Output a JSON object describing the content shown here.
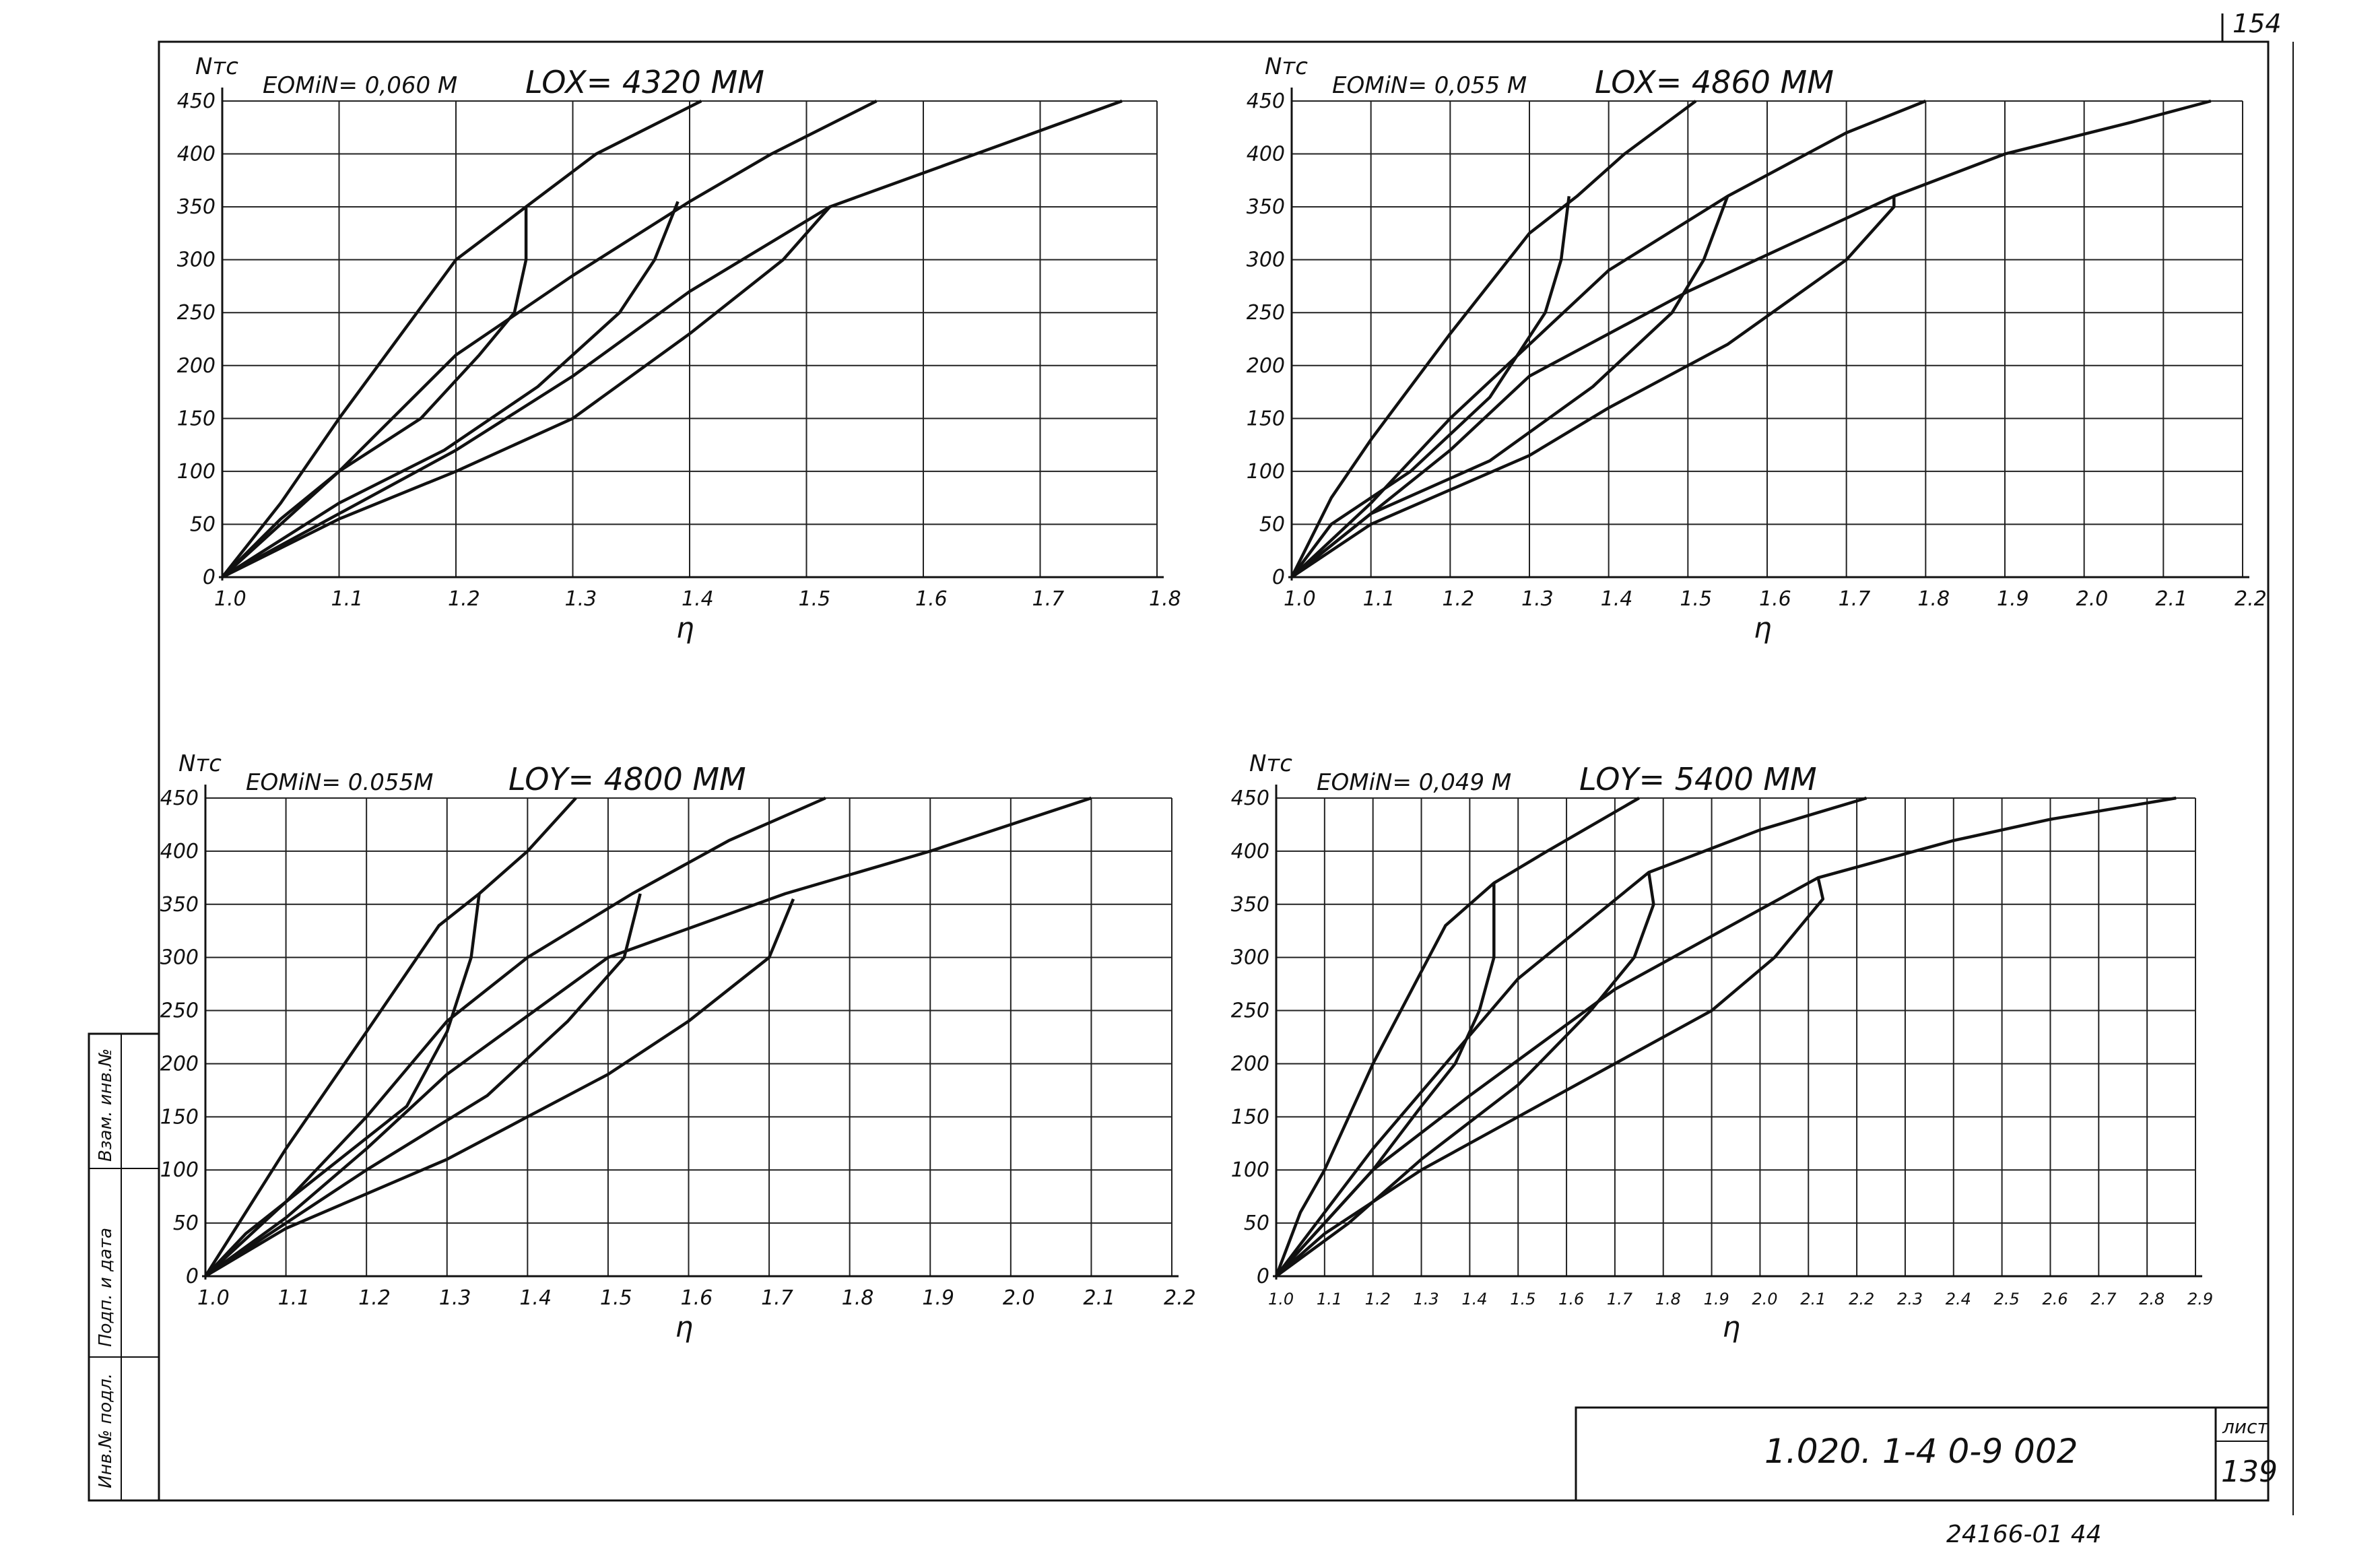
{
  "sheet": {
    "page_number_top": "154",
    "doc_code": "1.020. 1-4   0-9  002",
    "sheet_label": "лист",
    "sheet_number": "139",
    "bottom_note": "24166-01   44",
    "side_stamp": [
      "Инв.№ подл.",
      "Подп. и дата",
      "Взам. инв.№"
    ]
  },
  "chart_data": [
    {
      "type": "line",
      "header_left": "EOMiN= 0,060 M",
      "header_right": "LOX= 4320 MM",
      "ylabel": "Nтс",
      "xlabel": "η",
      "ylim": [
        0,
        450
      ],
      "xlim": [
        1.0,
        1.8
      ],
      "xticks": [
        "1.0",
        "1.1",
        "1.2",
        "1.3",
        "1.4",
        "1.5",
        "1.6",
        "1.7",
        "1.8"
      ],
      "yticks": [
        "0",
        "50",
        "100",
        "150",
        "200",
        "250",
        "300",
        "350",
        "400",
        "450"
      ],
      "grid": true,
      "series": [
        {
          "x": [
            1.0,
            1.05,
            1.1,
            1.2,
            1.26,
            1.32,
            1.41
          ],
          "y": [
            0,
            70,
            150,
            300,
            350,
            400,
            450
          ]
        },
        {
          "x": [
            1.0,
            1.05,
            1.1,
            1.2,
            1.3,
            1.4,
            1.47,
            1.56
          ],
          "y": [
            0,
            55,
            100,
            210,
            285,
            355,
            400,
            450
          ]
        },
        {
          "x": [
            1.0,
            1.1,
            1.2,
            1.3,
            1.4,
            1.52,
            1.62,
            1.77
          ],
          "y": [
            0,
            60,
            120,
            190,
            270,
            350,
            390,
            450
          ]
        },
        {
          "x": [
            1.26,
            1.26,
            1.25,
            1.22,
            1.17,
            1.1,
            1.0
          ],
          "y": [
            350,
            300,
            250,
            210,
            150,
            100,
            0
          ]
        },
        {
          "x": [
            1.39,
            1.37,
            1.34,
            1.27,
            1.19,
            1.1,
            1.0
          ],
          "y": [
            355,
            300,
            250,
            180,
            120,
            70,
            0
          ]
        },
        {
          "x": [
            1.52,
            1.48,
            1.4,
            1.3,
            1.2,
            1.1,
            1.0
          ],
          "y": [
            350,
            300,
            230,
            150,
            100,
            55,
            0
          ]
        }
      ]
    },
    {
      "type": "line",
      "header_left": "EOMiN= 0,055 M",
      "header_right": "LOX= 4860 MM",
      "ylabel": "Nтс",
      "xlabel": "η",
      "ylim": [
        0,
        450
      ],
      "xlim": [
        1.0,
        2.2
      ],
      "xticks": [
        "1.0",
        "1.1",
        "1.2",
        "1.3",
        "1.4",
        "1.5",
        "1.6",
        "1.7",
        "1.8",
        "1.9",
        "2.0",
        "2.1",
        "2.2"
      ],
      "yticks": [
        "0",
        "50",
        "100",
        "150",
        "200",
        "250",
        "300",
        "350",
        "400",
        "450"
      ],
      "grid": true,
      "series": [
        {
          "x": [
            1.0,
            1.05,
            1.1,
            1.2,
            1.3,
            1.36,
            1.42,
            1.51
          ],
          "y": [
            0,
            75,
            130,
            230,
            325,
            360,
            400,
            450
          ]
        },
        {
          "x": [
            1.0,
            1.1,
            1.2,
            1.3,
            1.4,
            1.55,
            1.7,
            1.8
          ],
          "y": [
            0,
            70,
            150,
            220,
            290,
            360,
            420,
            450
          ]
        },
        {
          "x": [
            1.0,
            1.1,
            1.2,
            1.3,
            1.5,
            1.76,
            1.9,
            2.06,
            2.16
          ],
          "y": [
            0,
            60,
            120,
            190,
            270,
            360,
            400,
            430,
            450
          ]
        },
        {
          "x": [
            1.35,
            1.34,
            1.32,
            1.25,
            1.15,
            1.05,
            1.0
          ],
          "y": [
            360,
            300,
            250,
            170,
            100,
            50,
            0
          ]
        },
        {
          "x": [
            1.55,
            1.52,
            1.48,
            1.38,
            1.25,
            1.1,
            1.0
          ],
          "y": [
            360,
            300,
            250,
            180,
            110,
            60,
            0
          ]
        },
        {
          "x": [
            1.76,
            1.76,
            1.7,
            1.55,
            1.4,
            1.3,
            1.1,
            1.0
          ],
          "y": [
            360,
            350,
            300,
            220,
            160,
            115,
            50,
            0
          ]
        }
      ]
    },
    {
      "type": "line",
      "header_left": "EOMiN= 0.055M",
      "header_right": "LOY= 4800 MM",
      "ylabel": "Nтс",
      "xlabel": "η",
      "ylim": [
        0,
        450
      ],
      "xlim": [
        1.0,
        2.2
      ],
      "xticks": [
        "1.0",
        "1.1",
        "1.2",
        "1.3",
        "1.4",
        "1.5",
        "1.6",
        "1.7",
        "1.8",
        "1.9",
        "2.0",
        "2.1",
        "2.2"
      ],
      "yticks": [
        "0",
        "50",
        "100",
        "150",
        "200",
        "250",
        "300",
        "350",
        "400",
        "450"
      ],
      "grid": true,
      "series": [
        {
          "x": [
            1.0,
            1.1,
            1.2,
            1.29,
            1.34,
            1.4,
            1.46
          ],
          "y": [
            0,
            120,
            230,
            330,
            360,
            400,
            450
          ]
        },
        {
          "x": [
            1.0,
            1.1,
            1.2,
            1.3,
            1.4,
            1.53,
            1.65,
            1.77
          ],
          "y": [
            0,
            70,
            150,
            240,
            300,
            360,
            410,
            450
          ]
        },
        {
          "x": [
            1.0,
            1.1,
            1.2,
            1.3,
            1.5,
            1.72,
            1.9,
            2.0,
            2.1
          ],
          "y": [
            0,
            55,
            120,
            190,
            300,
            360,
            400,
            425,
            450
          ]
        },
        {
          "x": [
            1.34,
            1.33,
            1.3,
            1.25,
            1.15,
            1.05,
            1.0
          ],
          "y": [
            360,
            300,
            230,
            160,
            100,
            40,
            0
          ]
        },
        {
          "x": [
            1.54,
            1.52,
            1.45,
            1.35,
            1.2,
            1.1,
            1.0
          ],
          "y": [
            360,
            300,
            240,
            170,
            100,
            50,
            0
          ]
        },
        {
          "x": [
            1.73,
            1.7,
            1.6,
            1.5,
            1.4,
            1.3,
            1.1,
            1.0
          ],
          "y": [
            355,
            300,
            240,
            190,
            150,
            110,
            45,
            0
          ]
        }
      ]
    },
    {
      "type": "line",
      "header_left": "EOMiN= 0,049 M",
      "header_right": "LOY= 5400 MM",
      "ylabel": "Nтс",
      "xlabel": "η",
      "ylim": [
        0,
        450
      ],
      "xlim": [
        1.0,
        2.9
      ],
      "xticks": [
        "1.0",
        "1.1",
        "1.2",
        "1.3",
        "1.4",
        "1.5",
        "1.6",
        "1.7",
        "1.8",
        "1.9",
        "2.0",
        "2.1",
        "2.2",
        "2.3",
        "2.4",
        "2.5",
        "2.6",
        "2.7",
        "2.8",
        "2.9"
      ],
      "yticks": [
        "0",
        "50",
        "100",
        "150",
        "200",
        "250",
        "300",
        "350",
        "400",
        "450"
      ],
      "grid": true,
      "series": [
        {
          "x": [
            1.0,
            1.05,
            1.1,
            1.2,
            1.35,
            1.45,
            1.56,
            1.75
          ],
          "y": [
            0,
            60,
            100,
            200,
            330,
            370,
            400,
            450
          ]
        },
        {
          "x": [
            1.0,
            1.1,
            1.2,
            1.35,
            1.5,
            1.77,
            2.0,
            2.22
          ],
          "y": [
            0,
            60,
            120,
            200,
            280,
            380,
            420,
            450
          ]
        },
        {
          "x": [
            1.0,
            1.1,
            1.2,
            1.4,
            1.7,
            2.12,
            2.4,
            2.6,
            2.86
          ],
          "y": [
            0,
            50,
            100,
            170,
            270,
            375,
            410,
            430,
            450
          ]
        },
        {
          "x": [
            1.45,
            1.45,
            1.42,
            1.37,
            1.3,
            1.2,
            1.1,
            1.0
          ],
          "y": [
            370,
            300,
            250,
            200,
            160,
            100,
            50,
            0
          ]
        },
        {
          "x": [
            1.77,
            1.78,
            1.74,
            1.65,
            1.5,
            1.3,
            1.15,
            1.0
          ],
          "y": [
            380,
            350,
            300,
            250,
            180,
            110,
            50,
            0
          ]
        },
        {
          "x": [
            2.12,
            2.13,
            2.03,
            1.9,
            1.7,
            1.5,
            1.3,
            1.1,
            1.0
          ],
          "y": [
            375,
            355,
            300,
            250,
            200,
            150,
            100,
            40,
            0
          ]
        }
      ]
    }
  ]
}
